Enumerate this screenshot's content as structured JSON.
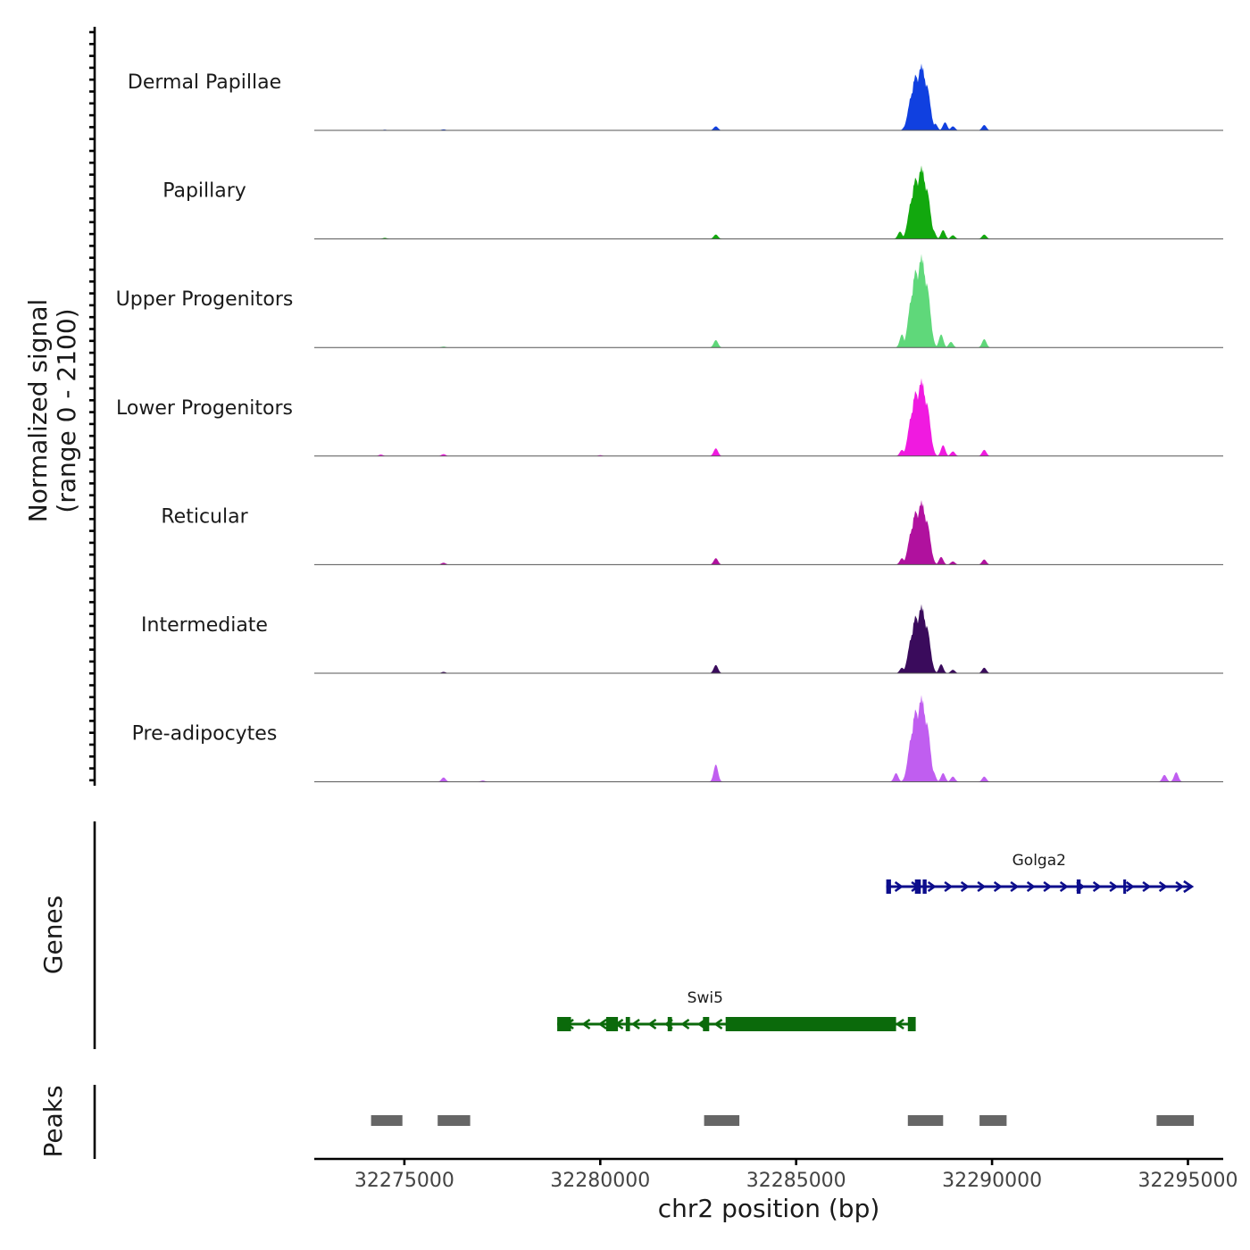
{
  "chart_data": {
    "type": "area",
    "title": "",
    "y_axis_label": "Normalized signal",
    "y_range_label": "(range 0 - 2100)",
    "ylim": [
      0,
      2100
    ],
    "xlabel": "chr2 position (bp)",
    "xlim": [
      32272700,
      32295900
    ],
    "x_ticks": [
      32275000,
      32280000,
      32285000,
      32290000,
      32295000
    ],
    "x_tick_labels": [
      "32275000",
      "32280000",
      "32285000",
      "32290000",
      "32295000"
    ],
    "peaks_component": [
      {
        "center": 32288200,
        "width": 120,
        "height": 1.0
      },
      {
        "center": 32288050,
        "width": 100,
        "height": 0.85
      },
      {
        "center": 32287950,
        "width": 90,
        "height": 0.55
      },
      {
        "center": 32288330,
        "width": 90,
        "height": 0.7
      }
    ],
    "series": [
      {
        "name": "Dermal Papillae",
        "color": "#1040e0",
        "max": 1500,
        "minor": [
          [
            32282950,
            0.06
          ],
          [
            32287800,
            0.08
          ],
          [
            32288550,
            0.1
          ],
          [
            32288800,
            0.12
          ],
          [
            32289000,
            0.06
          ],
          [
            32289800,
            0.08
          ],
          [
            32276000,
            0.015
          ],
          [
            32274500,
            0.01
          ]
        ]
      },
      {
        "name": "Papillary",
        "color": "#12a80e",
        "max": 1650,
        "minor": [
          [
            32282950,
            0.06
          ],
          [
            32287650,
            0.1
          ],
          [
            32287850,
            0.12
          ],
          [
            32288500,
            0.12
          ],
          [
            32288750,
            0.12
          ],
          [
            32289000,
            0.05
          ],
          [
            32289800,
            0.06
          ],
          [
            32274500,
            0.015
          ]
        ]
      },
      {
        "name": "Upper Progenitors",
        "color": "#5fd87a",
        "max": 2100,
        "minor": [
          [
            32282950,
            0.08
          ],
          [
            32287700,
            0.14
          ],
          [
            32287850,
            0.18
          ],
          [
            32288450,
            0.13
          ],
          [
            32288700,
            0.14
          ],
          [
            32288950,
            0.06
          ],
          [
            32289800,
            0.09
          ],
          [
            32276000,
            0.01
          ]
        ]
      },
      {
        "name": "Lower Progenitors",
        "color": "#f01ae0",
        "max": 1750,
        "minor": [
          [
            32282950,
            0.1
          ],
          [
            32287700,
            0.08
          ],
          [
            32287850,
            0.18
          ],
          [
            32288450,
            0.18
          ],
          [
            32288750,
            0.14
          ],
          [
            32289000,
            0.06
          ],
          [
            32289800,
            0.08
          ],
          [
            32274400,
            0.02
          ],
          [
            32276000,
            0.025
          ],
          [
            32280000,
            0.012
          ]
        ]
      },
      {
        "name": "Reticular",
        "color": "#b0119e",
        "max": 1450,
        "minor": [
          [
            32282950,
            0.1
          ],
          [
            32287700,
            0.1
          ],
          [
            32287850,
            0.17
          ],
          [
            32288450,
            0.16
          ],
          [
            32288700,
            0.12
          ],
          [
            32289000,
            0.05
          ],
          [
            32289800,
            0.08
          ],
          [
            32276000,
            0.03
          ]
        ]
      },
      {
        "name": "Intermediate",
        "color": "#3a0b5c",
        "max": 1550,
        "minor": [
          [
            32282950,
            0.12
          ],
          [
            32287700,
            0.08
          ],
          [
            32287850,
            0.18
          ],
          [
            32288450,
            0.12
          ],
          [
            32288700,
            0.13
          ],
          [
            32289000,
            0.05
          ],
          [
            32289800,
            0.08
          ],
          [
            32276000,
            0.02
          ]
        ]
      },
      {
        "name": "Pre-adipocytes",
        "color": "#c05ef0",
        "max": 1950,
        "minor": [
          [
            32282950,
            0.2
          ],
          [
            32287550,
            0.1
          ],
          [
            32287850,
            0.16
          ],
          [
            32288500,
            0.12
          ],
          [
            32288750,
            0.1
          ],
          [
            32289000,
            0.06
          ],
          [
            32289800,
            0.06
          ],
          [
            32276000,
            0.05
          ],
          [
            32294400,
            0.08
          ],
          [
            32294700,
            0.11
          ],
          [
            32277000,
            0.015
          ]
        ]
      }
    ],
    "genes_label": "Genes",
    "genes": [
      {
        "name": "Golga2",
        "color": "#0c0d8c",
        "strand": "+",
        "start": 32287300,
        "end": 32295100,
        "exons": [
          [
            32287300,
            32287420
          ],
          [
            32288030,
            32288180
          ],
          [
            32288230,
            32288330
          ],
          [
            32292160,
            32292260
          ],
          [
            32293350,
            32293420
          ]
        ]
      },
      {
        "name": "Swi5",
        "color": "#0b6a0b",
        "strand": "-",
        "start": 32278900,
        "end": 32288050,
        "exons": [
          [
            32278900,
            32279250
          ],
          [
            32280150,
            32280450
          ],
          [
            32280650,
            32280760
          ],
          [
            32281720,
            32281830
          ],
          [
            32282620,
            32282780
          ],
          [
            32283200,
            32287550
          ],
          [
            32287850,
            32288050
          ]
        ]
      }
    ],
    "peaks_label": "Peaks",
    "peaks_color": "#666666",
    "peaks": [
      [
        32274150,
        32274950
      ],
      [
        32275850,
        32276680
      ],
      [
        32282650,
        32283550
      ],
      [
        32287850,
        32288750
      ],
      [
        32289680,
        32290370
      ],
      [
        32294200,
        32295150
      ]
    ]
  }
}
